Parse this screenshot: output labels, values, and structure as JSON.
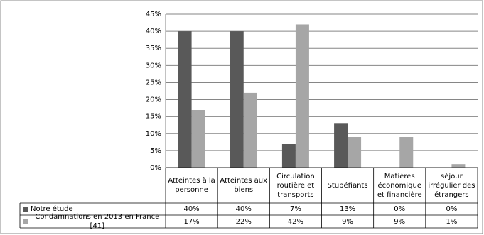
{
  "chart_data": {
    "type": "bar",
    "categories": [
      "Atteintes à la personne",
      "Atteintes aux biens",
      "Circulation routière et transports",
      "Stupéfiants",
      "Matières économique et financière",
      "séjour irrégulier des étrangers"
    ],
    "series": [
      {
        "name": "Notre étude",
        "color": "#595959",
        "values": [
          40,
          40,
          7,
          13,
          0,
          0
        ],
        "value_labels": [
          "40%",
          "40%",
          "7%",
          "13%",
          "0%",
          "0%"
        ]
      },
      {
        "name": "Condamnations en 2013 en France [41]",
        "color": "#a6a6a6",
        "values": [
          17,
          22,
          42,
          9,
          9,
          1
        ],
        "value_labels": [
          "17%",
          "22%",
          "42%",
          "9%",
          "9%",
          "1%"
        ]
      }
    ],
    "ylim": [
      0,
      45
    ],
    "yticks": [
      {
        "value": 0,
        "label": "0%"
      },
      {
        "value": 5,
        "label": "5%"
      },
      {
        "value": 10,
        "label": "10%"
      },
      {
        "value": 15,
        "label": "15%"
      },
      {
        "value": 20,
        "label": "20%"
      },
      {
        "value": 25,
        "label": "25%"
      },
      {
        "value": 30,
        "label": "30%"
      },
      {
        "value": 35,
        "label": "35%"
      },
      {
        "value": 40,
        "label": "40%"
      },
      {
        "value": 45,
        "label": "45%"
      }
    ],
    "grid": true
  }
}
